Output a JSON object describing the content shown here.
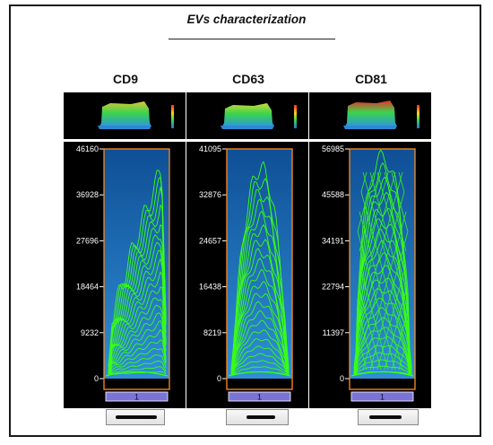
{
  "figure": {
    "title": "EVs characterization"
  },
  "panels": [
    {
      "label": "CD9",
      "ticks": [
        "46160",
        "36928",
        "27696",
        "18464",
        "9232",
        "0"
      ],
      "lane": "1"
    },
    {
      "label": "CD63",
      "ticks": [
        "41095",
        "32876",
        "24657",
        "16438",
        "8219",
        "0"
      ],
      "lane": "1"
    },
    {
      "label": "CD81",
      "ticks": [
        "56985",
        "45588",
        "34191",
        "22794",
        "11397",
        "0"
      ],
      "lane": "1"
    }
  ],
  "colors": {
    "trace": "#39ff14",
    "plot_background_top": "#0f4f96",
    "plot_background_bottom": "#2f8fd6",
    "lane_frame": "#ff8c1a",
    "lane_box": "#7b74d6"
  }
}
